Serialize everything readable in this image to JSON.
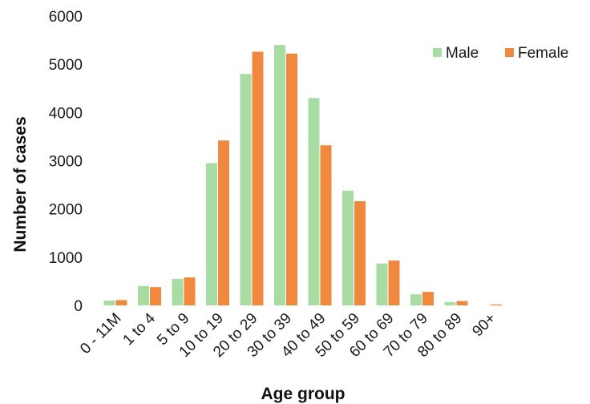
{
  "chart_data": {
    "type": "bar",
    "title": "",
    "xlabel": "Age group",
    "ylabel": "Number of cases",
    "ylim": [
      0,
      6000
    ],
    "yticks": [
      0,
      1000,
      2000,
      3000,
      4000,
      5000,
      6000
    ],
    "grid": false,
    "legend_position": "top-right",
    "categories": [
      "0 - 11M",
      "1 to 4",
      "5 to 9",
      "10 to 19",
      "20 to 29",
      "30 to 39",
      "40 to 49",
      "50 to 59",
      "60 to 69",
      "70 to 79",
      "80 to 89",
      "90+"
    ],
    "series": [
      {
        "name": "Male",
        "color": "#a9dca3",
        "values": [
          100,
          400,
          550,
          2950,
          4800,
          5400,
          4300,
          2380,
          870,
          230,
          70,
          0
        ]
      },
      {
        "name": "Female",
        "color": "#f0883e",
        "values": [
          110,
          380,
          580,
          3420,
          5260,
          5220,
          3320,
          2160,
          930,
          280,
          90,
          20
        ]
      }
    ]
  }
}
